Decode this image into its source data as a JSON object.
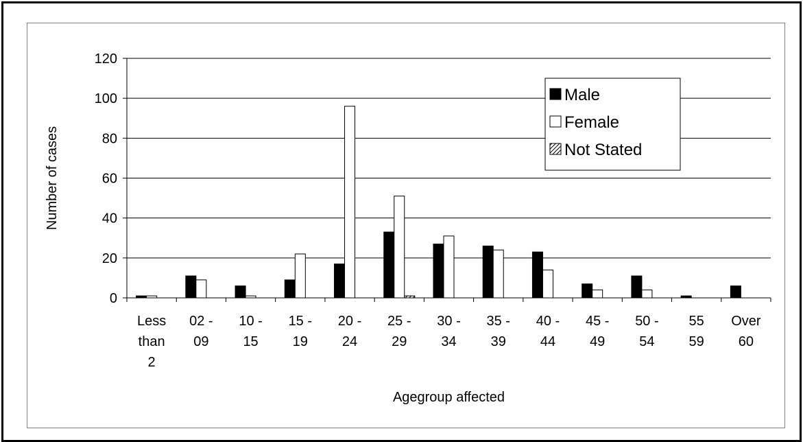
{
  "chart_data": {
    "type": "bar",
    "categories": [
      [
        "Less",
        "than",
        "2"
      ],
      [
        "02 -",
        "09"
      ],
      [
        "10 -",
        "15"
      ],
      [
        "15 -",
        "19"
      ],
      [
        "20 -",
        "24"
      ],
      [
        "25 -",
        "29"
      ],
      [
        "30 -",
        "34"
      ],
      [
        "35 -",
        "39"
      ],
      [
        "40 -",
        "44"
      ],
      [
        "45 -",
        "49"
      ],
      [
        "50 -",
        "54"
      ],
      [
        "55",
        "59"
      ],
      [
        "Over",
        "60"
      ]
    ],
    "series": [
      {
        "name": "Male",
        "fill": "#000000",
        "values": [
          1,
          11,
          6,
          9,
          17,
          33,
          27,
          26,
          23,
          7,
          11,
          1,
          6
        ]
      },
      {
        "name": "Female",
        "fill": "#ffffff",
        "values": [
          1,
          9,
          1,
          22,
          96,
          51,
          31,
          24,
          14,
          4,
          4,
          0,
          0
        ]
      },
      {
        "name": "Not Stated",
        "fill": "hatch",
        "values": [
          0,
          0,
          0,
          0,
          0,
          1,
          0,
          0,
          0,
          0,
          0,
          0,
          0
        ]
      }
    ],
    "y_ticks": [
      "0",
      "20",
      "40",
      "60",
      "80",
      "100",
      "120"
    ],
    "ylim": [
      0,
      120
    ],
    "xlabel": "Agegroup affected",
    "ylabel": "Number of cases",
    "grid": true,
    "legend_position": "top-right"
  }
}
